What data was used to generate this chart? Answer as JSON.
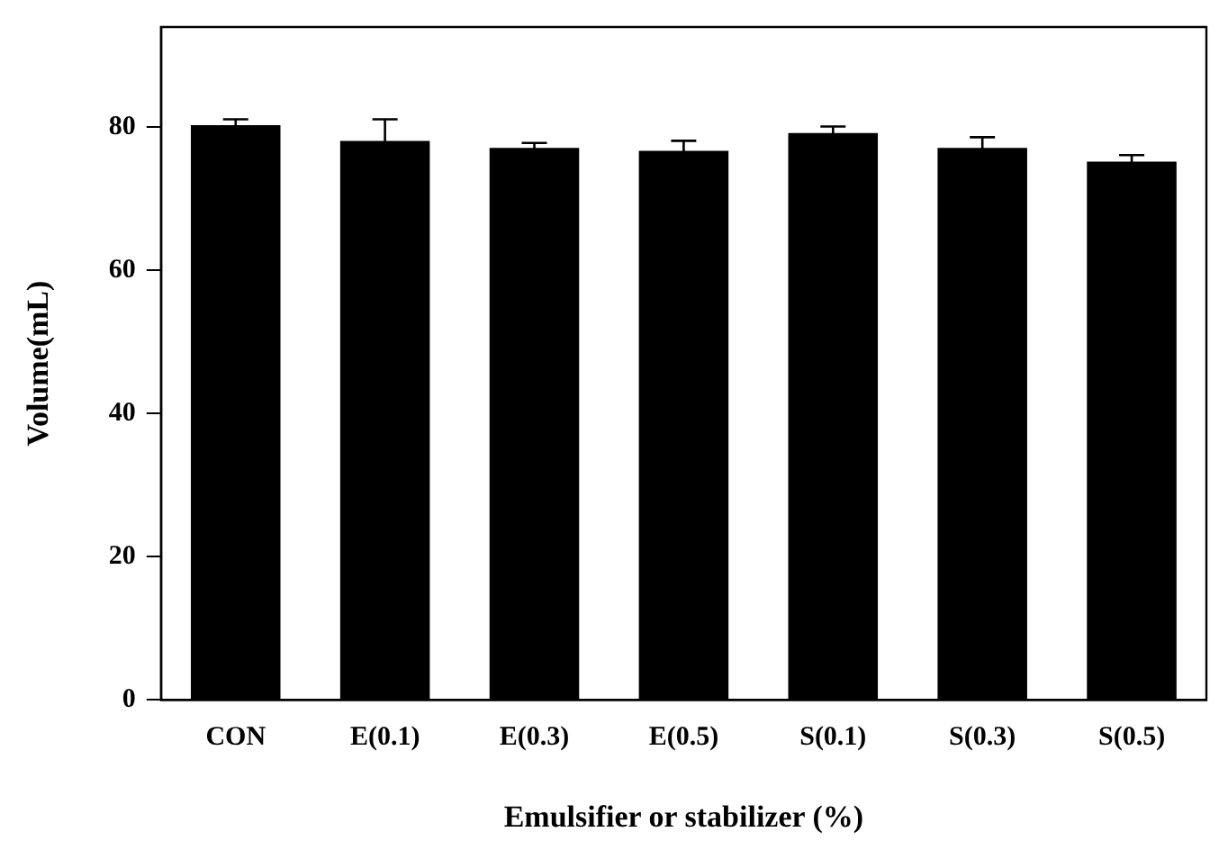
{
  "chart_data": {
    "type": "bar",
    "xlabel": "Emulsifier or stabilizer (%)",
    "ylabel": "Volume(mL)",
    "categories": [
      "CON",
      "E(0.1)",
      "E(0.3)",
      "E(0.5)",
      "S(0.1)",
      "S(0.3)",
      "S(0.5)"
    ],
    "values": [
      80.3,
      78.1,
      77.1,
      76.7,
      79.2,
      77.1,
      75.2
    ],
    "errors": [
      0.8,
      3,
      0.7,
      1.4,
      0.9,
      1.5,
      0.9
    ],
    "color": "#000000",
    "ylim": [
      0,
      94
    ],
    "yticks": [
      0,
      20,
      40,
      60,
      80
    ],
    "grid": false,
    "legend": false
  }
}
